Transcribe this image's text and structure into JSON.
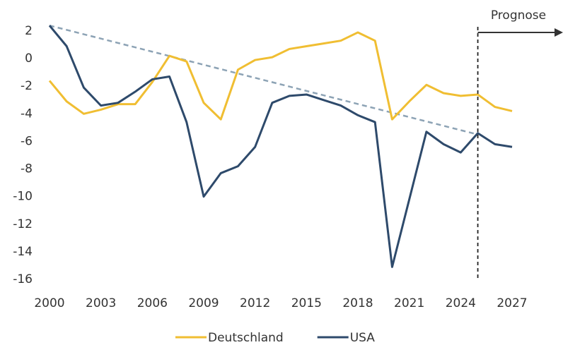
{
  "chart_data": {
    "type": "line",
    "x": [
      2000,
      2001,
      2002,
      2003,
      2004,
      2005,
      2006,
      2007,
      2008,
      2009,
      2010,
      2011,
      2012,
      2013,
      2014,
      2015,
      2016,
      2017,
      2018,
      2019,
      2020,
      2021,
      2022,
      2023,
      2024,
      2025,
      2026,
      2027
    ],
    "series": [
      {
        "name": "Deutschland",
        "color": "#f0be32",
        "values": [
          -1.6,
          -3.1,
          -4.0,
          -3.7,
          -3.3,
          -3.3,
          -1.7,
          0.2,
          -0.2,
          -3.2,
          -4.4,
          -0.8,
          -0.1,
          0.1,
          0.7,
          0.9,
          1.1,
          1.3,
          1.9,
          1.3,
          -4.4,
          -3.1,
          -1.9,
          -2.5,
          -2.7,
          -2.6,
          -3.5,
          -3.8
        ]
      },
      {
        "name": "USA",
        "color": "#2e4a6b",
        "values": [
          2.4,
          0.9,
          -2.1,
          -3.4,
          -3.2,
          -2.4,
          -1.5,
          -1.3,
          -4.6,
          -10.0,
          -8.3,
          -7.8,
          -6.4,
          -3.2,
          -2.7,
          -2.6,
          -3.0,
          -3.4,
          -4.1,
          -4.6,
          -15.1,
          -10.2,
          -5.3,
          -6.2,
          -6.8,
          -5.4,
          -6.2,
          -6.4
        ]
      }
    ],
    "trend": {
      "x": [
        2000,
        2025
      ],
      "values": [
        2.4,
        -5.5
      ],
      "color": "#8da3b5"
    },
    "forecast_start": 2025,
    "annotation": "Prognose",
    "xlim": [
      2000,
      2027
    ],
    "xticks": [
      2000,
      2003,
      2006,
      2009,
      2012,
      2015,
      2018,
      2021,
      2024,
      2027
    ],
    "ylim": [
      -16,
      2
    ],
    "yticks": [
      -16,
      -14,
      -12,
      -10,
      -8,
      -6,
      -4,
      -2,
      0,
      2
    ],
    "legend": "bottom"
  }
}
